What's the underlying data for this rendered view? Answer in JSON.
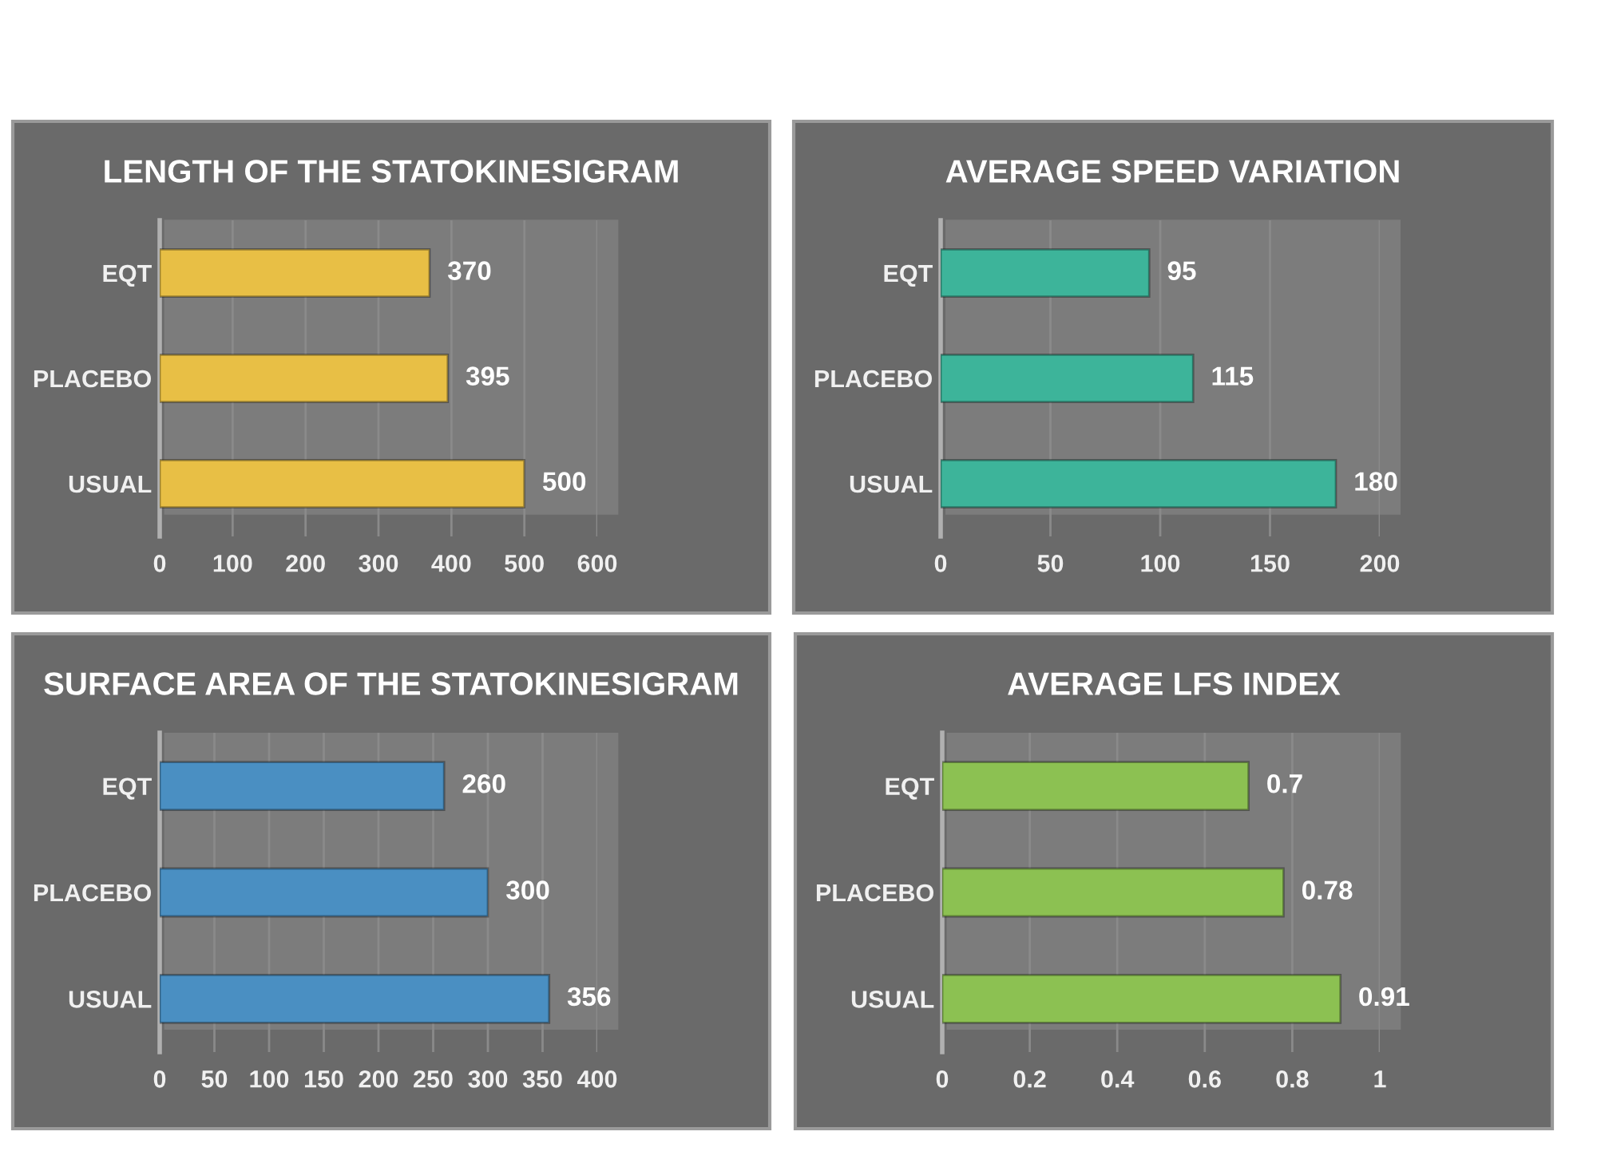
{
  "chart_data": [
    {
      "type": "bar",
      "orientation": "horizontal",
      "title": "LENGTH OF THE STATOKINESIGRAM",
      "categories": [
        "EQT",
        "PLACEBO",
        "USUAL"
      ],
      "values": [
        370,
        395,
        500
      ],
      "color": "#e8bf45",
      "xlim": [
        0,
        600
      ],
      "xticks": [
        0,
        100,
        200,
        300,
        400,
        500,
        600
      ],
      "grid": "x",
      "data_labels": true
    },
    {
      "type": "bar",
      "orientation": "horizontal",
      "title": "AVERAGE SPEED VARIATION",
      "categories": [
        "EQT",
        "PLACEBO",
        "USUAL"
      ],
      "values": [
        95,
        115,
        180
      ],
      "color": "#3db49a",
      "xlim": [
        0,
        200
      ],
      "xticks": [
        0,
        50,
        100,
        150,
        200
      ],
      "grid": "x",
      "data_labels": true
    },
    {
      "type": "bar",
      "orientation": "horizontal",
      "title": "SURFACE AREA OF THE STATOKINESIGRAM",
      "categories": [
        "EQT",
        "PLACEBO",
        "USUAL"
      ],
      "values": [
        260,
        300,
        356
      ],
      "color": "#4a8fc2",
      "xlim": [
        0,
        400
      ],
      "xticks": [
        0,
        50,
        100,
        150,
        200,
        250,
        300,
        350,
        400
      ],
      "grid": "x",
      "data_labels": true
    },
    {
      "type": "bar",
      "orientation": "horizontal",
      "title": "AVERAGE LFS INDEX",
      "categories": [
        "EQT",
        "PLACEBO",
        "USUAL"
      ],
      "values": [
        0.7,
        0.78,
        0.91
      ],
      "color": "#8cc152",
      "xlim": [
        0,
        1
      ],
      "xticks": [
        0,
        0.2,
        0.4,
        0.6,
        0.8,
        1
      ],
      "grid": "x",
      "data_labels": true
    }
  ]
}
